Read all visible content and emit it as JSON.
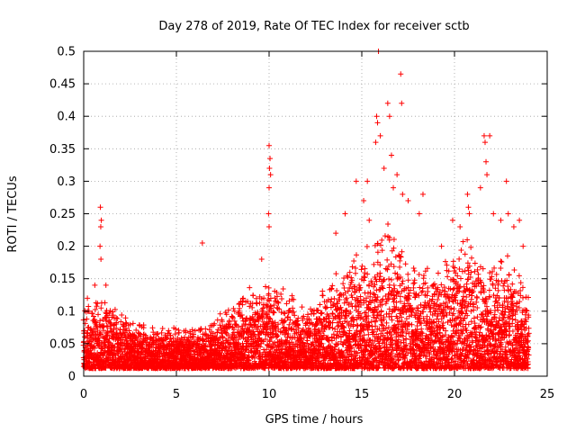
{
  "chart_data": {
    "type": "scatter",
    "title": "Day 278 of 2019, Rate Of TEC Index for receiver sctb",
    "xlabel": "GPS time / hours",
    "ylabel": "ROTI / TECUs",
    "xlim": [
      0,
      25
    ],
    "ylim": [
      0,
      0.5
    ],
    "xticks": [
      0,
      5,
      10,
      15,
      20,
      25
    ],
    "xtick_labels": [
      "0",
      "5",
      "10",
      "15",
      "20",
      "25"
    ],
    "yticks": [
      0,
      0.05,
      0.1,
      0.15,
      0.2,
      0.25,
      0.3,
      0.35,
      0.4,
      0.45,
      0.5
    ],
    "ytick_labels": [
      "0",
      "0.05",
      "0.1",
      "0.15",
      "0.2",
      "0.25",
      "0.3",
      "0.35",
      "0.4",
      "0.45",
      "0.5"
    ],
    "grid": true,
    "marker": "+",
    "color": "#ff0000",
    "series": [
      {
        "name": "ROTI",
        "x_range": [
          0,
          24
        ],
        "sample_step_hours": 0.025,
        "hourly_profile": {
          "hours": [
            0,
            1,
            2,
            3,
            4,
            5,
            6,
            7,
            8,
            9,
            10,
            11,
            12,
            13,
            14,
            15,
            16,
            17,
            18,
            19,
            20,
            21,
            22,
            23,
            24
          ],
          "typical_upper": [
            0.08,
            0.09,
            0.07,
            0.06,
            0.05,
            0.05,
            0.05,
            0.06,
            0.08,
            0.1,
            0.11,
            0.1,
            0.07,
            0.1,
            0.13,
            0.15,
            0.18,
            0.16,
            0.12,
            0.13,
            0.15,
            0.16,
            0.13,
            0.14,
            0.1
          ]
        },
        "spikes": [
          {
            "x": 0.9,
            "y": 0.26
          },
          {
            "x": 0.95,
            "y": 0.24
          },
          {
            "x": 0.92,
            "y": 0.23
          },
          {
            "x": 0.88,
            "y": 0.2
          },
          {
            "x": 0.93,
            "y": 0.18
          },
          {
            "x": 0.6,
            "y": 0.14
          },
          {
            "x": 0.2,
            "y": 0.12
          },
          {
            "x": 1.2,
            "y": 0.14
          },
          {
            "x": 6.4,
            "y": 0.205
          },
          {
            "x": 9.6,
            "y": 0.18
          },
          {
            "x": 10.0,
            "y": 0.355
          },
          {
            "x": 10.05,
            "y": 0.335
          },
          {
            "x": 10.02,
            "y": 0.32
          },
          {
            "x": 10.08,
            "y": 0.31
          },
          {
            "x": 10.0,
            "y": 0.29
          },
          {
            "x": 9.97,
            "y": 0.25
          },
          {
            "x": 10.0,
            "y": 0.23
          },
          {
            "x": 13.6,
            "y": 0.22
          },
          {
            "x": 14.1,
            "y": 0.25
          },
          {
            "x": 14.7,
            "y": 0.3
          },
          {
            "x": 15.1,
            "y": 0.27
          },
          {
            "x": 15.3,
            "y": 0.3
          },
          {
            "x": 15.4,
            "y": 0.24
          },
          {
            "x": 15.8,
            "y": 0.4
          },
          {
            "x": 15.85,
            "y": 0.39
          },
          {
            "x": 15.9,
            "y": 0.5
          },
          {
            "x": 15.75,
            "y": 0.36
          },
          {
            "x": 16.0,
            "y": 0.37
          },
          {
            "x": 16.2,
            "y": 0.32
          },
          {
            "x": 16.4,
            "y": 0.42
          },
          {
            "x": 16.5,
            "y": 0.4
          },
          {
            "x": 16.6,
            "y": 0.34
          },
          {
            "x": 16.7,
            "y": 0.29
          },
          {
            "x": 16.9,
            "y": 0.31
          },
          {
            "x": 17.1,
            "y": 0.465
          },
          {
            "x": 17.15,
            "y": 0.42
          },
          {
            "x": 17.2,
            "y": 0.28
          },
          {
            "x": 17.5,
            "y": 0.27
          },
          {
            "x": 18.3,
            "y": 0.28
          },
          {
            "x": 18.1,
            "y": 0.25
          },
          {
            "x": 19.3,
            "y": 0.2
          },
          {
            "x": 19.9,
            "y": 0.24
          },
          {
            "x": 20.3,
            "y": 0.23
          },
          {
            "x": 20.7,
            "y": 0.28
          },
          {
            "x": 20.75,
            "y": 0.26
          },
          {
            "x": 20.8,
            "y": 0.25
          },
          {
            "x": 21.4,
            "y": 0.29
          },
          {
            "x": 21.6,
            "y": 0.37
          },
          {
            "x": 21.65,
            "y": 0.36
          },
          {
            "x": 21.7,
            "y": 0.33
          },
          {
            "x": 21.75,
            "y": 0.31
          },
          {
            "x": 21.9,
            "y": 0.37
          },
          {
            "x": 22.1,
            "y": 0.25
          },
          {
            "x": 22.5,
            "y": 0.24
          },
          {
            "x": 22.8,
            "y": 0.3
          },
          {
            "x": 22.9,
            "y": 0.25
          },
          {
            "x": 23.2,
            "y": 0.23
          },
          {
            "x": 23.5,
            "y": 0.24
          },
          {
            "x": 23.7,
            "y": 0.2
          }
        ]
      }
    ]
  }
}
